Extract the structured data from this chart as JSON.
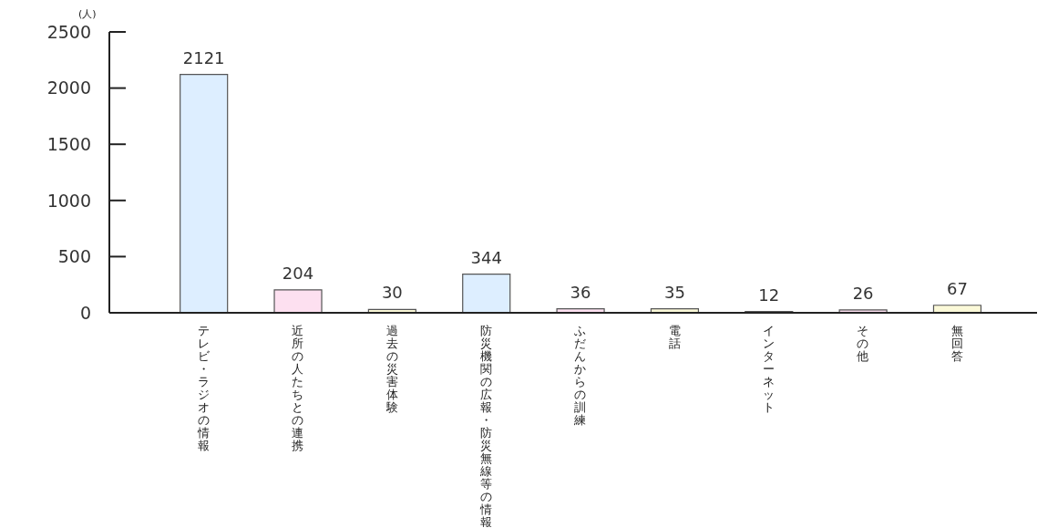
{
  "chart_data": {
    "type": "bar",
    "ylabel": "(人)",
    "categories": [
      "テレビ・ラジオの情報",
      "近所の人たちとの連携",
      "過去の災害体験",
      "防災機関の広報・防災無線等の情報",
      "ふだんからの訓練",
      "電話",
      "インターネット",
      "その他",
      "無回答"
    ],
    "values": [
      2121,
      204,
      30,
      344,
      36,
      35,
      12,
      26,
      67
    ],
    "colors": [
      "#ddeeff",
      "#fde0f0",
      "#fbf9d8",
      "#ddeeff",
      "#fde0f0",
      "#fbf9d8",
      "#ddeeff",
      "#fde0f0",
      "#fbf9d8"
    ],
    "ylim": [
      0,
      2500
    ],
    "yticks": [
      0,
      500,
      1000,
      1500,
      2000,
      2500
    ],
    "data_labels": true
  }
}
